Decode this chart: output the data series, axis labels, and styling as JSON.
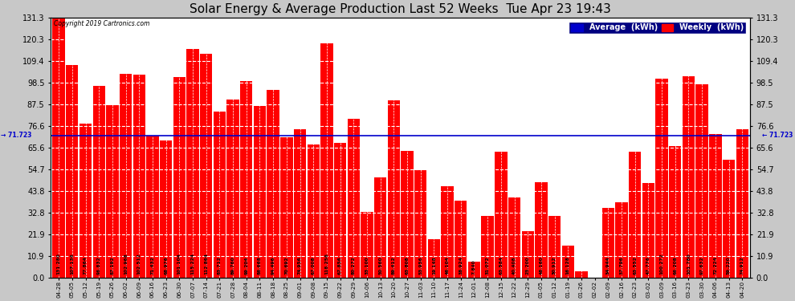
{
  "title": "Solar Energy & Average Production Last 52 Weeks  Tue Apr 23 19:43",
  "copyright": "Copyright 2019 Cartronics.com",
  "average_line": 71.723,
  "bar_color": "#ff0000",
  "average_line_color": "#0000cc",
  "background_color": "#c8c8c8",
  "plot_bg_color": "#ffffff",
  "ylim": [
    0,
    131.3
  ],
  "yticks": [
    0.0,
    10.9,
    21.9,
    32.8,
    43.8,
    54.7,
    65.6,
    76.6,
    87.5,
    98.5,
    109.4,
    120.3,
    131.3
  ],
  "categories": [
    "04-28",
    "05-05",
    "05-12",
    "05-19",
    "05-26",
    "06-02",
    "06-09",
    "06-16",
    "06-23",
    "06-30",
    "07-07",
    "07-14",
    "07-21",
    "07-28",
    "08-04",
    "08-11",
    "08-18",
    "08-25",
    "09-01",
    "09-08",
    "09-15",
    "09-22",
    "09-29",
    "10-06",
    "10-13",
    "10-20",
    "10-27",
    "11-03",
    "11-10",
    "11-17",
    "11-24",
    "12-01",
    "12-08",
    "12-15",
    "12-22",
    "12-29",
    "01-05",
    "01-12",
    "01-19",
    "01-26",
    "02-02",
    "02-09",
    "02-16",
    "02-23",
    "03-02",
    "03-09",
    "03-16",
    "03-23",
    "03-30",
    "04-06",
    "04-13",
    "04-20"
  ],
  "values": [
    131.28,
    107.136,
    77.864,
    96.832,
    87.192,
    102.968,
    102.512,
    71.432,
    68.976,
    101.104,
    115.224,
    112.864,
    83.712,
    89.76,
    99.204,
    86.668,
    94.496,
    70.692,
    74.956,
    67.008,
    118.256,
    67.856,
    80.272,
    33.1,
    50.56,
    89.412,
    63.808,
    53.956,
    19.148,
    46.104,
    38.924,
    7.84,
    31.072,
    63.584,
    40.408,
    23.2,
    48.16,
    30.912,
    16.128,
    3.012,
    0.0,
    34.944,
    37.796,
    63.552,
    47.776,
    100.272,
    66.208,
    101.78,
    97.632,
    72.224,
    59.22,
    74.912
  ],
  "legend_avg_label": "Average  (kWh)",
  "legend_weekly_label": "Weekly  (kWh)",
  "legend_avg_color": "#0000cc",
  "legend_weekly_color": "#ff0000",
  "avg_left_label": "→ 71.723",
  "avg_right_label": "← 71.723"
}
